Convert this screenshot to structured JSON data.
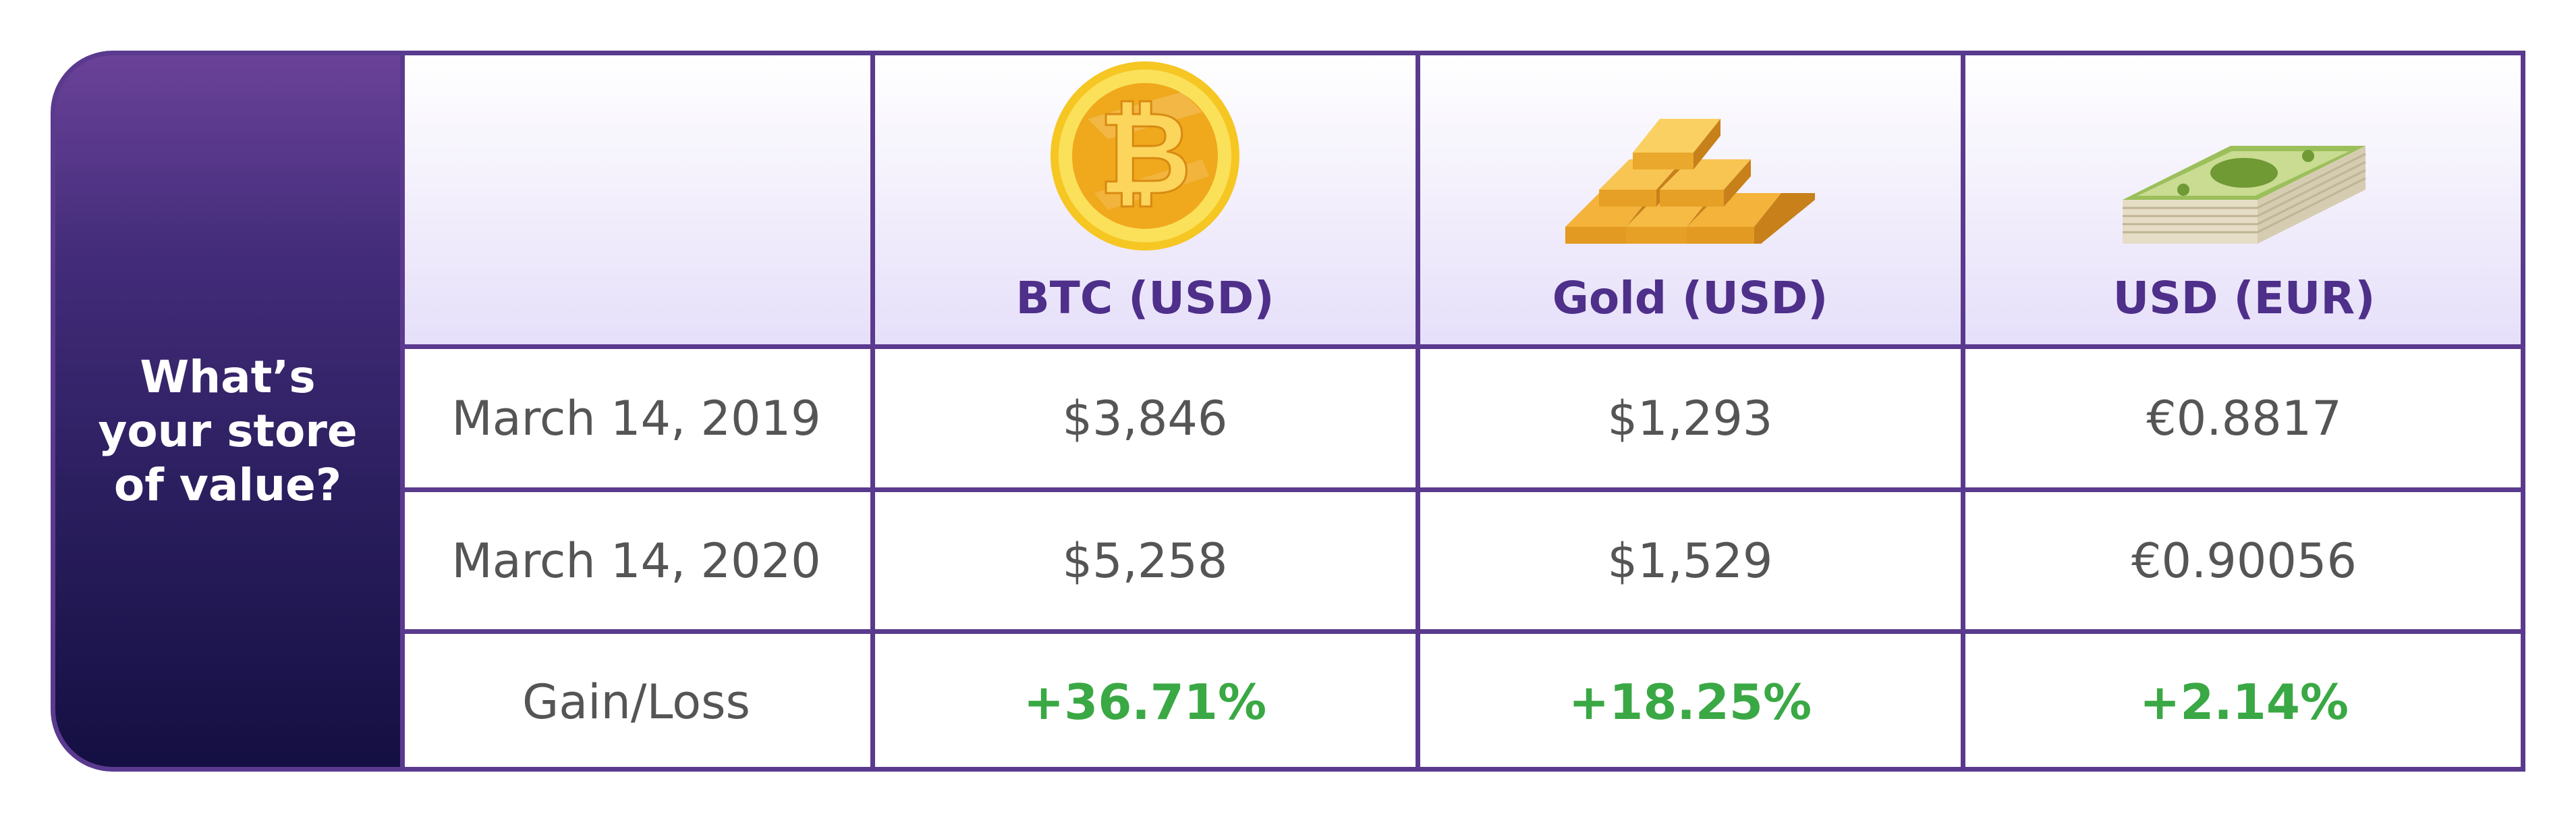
{
  "chart_data": {
    "type": "table",
    "title": "What’s your store of value?",
    "columns": [
      {
        "label": "BTC (USD)",
        "icon": "bitcoin-coin-icon"
      },
      {
        "label": "Gold (USD)",
        "icon": "gold-bars-icon"
      },
      {
        "label": "USD (EUR)",
        "icon": "cash-stack-icon"
      }
    ],
    "rows": [
      {
        "label": "March 14, 2019",
        "values": [
          "$3,846",
          "$1,293",
          "€0.8817"
        ]
      },
      {
        "label": "March 14, 2020",
        "values": [
          "$5,258",
          "$1,529",
          "€0.90056"
        ]
      },
      {
        "label": "Gain/Loss",
        "values": [
          "+36.71%",
          "+18.25%",
          "+2.14%"
        ]
      }
    ]
  },
  "colors": {
    "border": "#5a3a8e",
    "header_text": "#4e2f8a",
    "gain_text": "#3aa844",
    "body_text": "#555555",
    "panel_top": "#6a4298",
    "panel_bottom": "#140f42"
  }
}
